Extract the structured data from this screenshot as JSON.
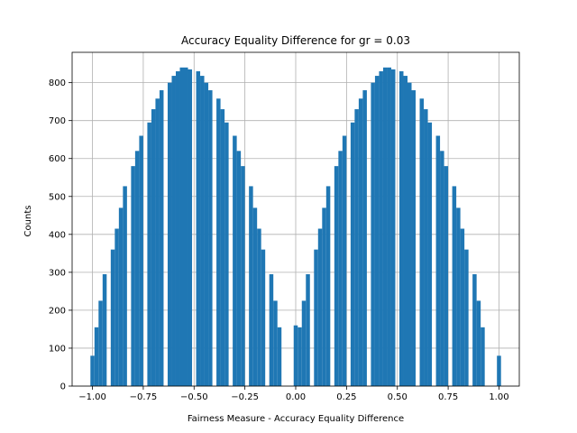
{
  "chart_data": {
    "type": "bar",
    "title": "Accuracy Equality Difference for gr = 0.03",
    "xlabel": "Fairness Measure - Accuracy Equality Difference",
    "ylabel": "Counts",
    "xlim": [
      -1.1,
      1.1
    ],
    "ylim": [
      0,
      880
    ],
    "xticks": [
      -1.0,
      -0.75,
      -0.5,
      -0.25,
      0.0,
      0.25,
      0.5,
      0.75,
      1.0
    ],
    "xtick_labels": [
      "−1.00",
      "−0.75",
      "−0.50",
      "−0.25",
      "0.00",
      "0.25",
      "0.50",
      "0.75",
      "1.00"
    ],
    "yticks": [
      0,
      100,
      200,
      300,
      400,
      500,
      600,
      700,
      800
    ],
    "ytick_labels": [
      "0",
      "100",
      "200",
      "300",
      "400",
      "500",
      "600",
      "700",
      "800"
    ],
    "grid": true,
    "bar_color": "#1f77b4",
    "bin_width": 0.02,
    "x": [
      -1.0,
      -0.98,
      -0.96,
      -0.94,
      -0.92,
      -0.9,
      -0.88,
      -0.86,
      -0.84,
      -0.82,
      -0.8,
      -0.78,
      -0.76,
      -0.74,
      -0.72,
      -0.7,
      -0.68,
      -0.66,
      -0.64,
      -0.62,
      -0.6,
      -0.58,
      -0.56,
      -0.54,
      -0.52,
      -0.5,
      -0.48,
      -0.46,
      -0.44,
      -0.42,
      -0.4,
      -0.38,
      -0.36,
      -0.34,
      -0.32,
      -0.3,
      -0.28,
      -0.26,
      -0.24,
      -0.22,
      -0.2,
      -0.18,
      -0.16,
      -0.14,
      -0.12,
      -0.1,
      -0.08,
      -0.06,
      -0.04,
      -0.02,
      0.0,
      0.02,
      0.04,
      0.06,
      0.08,
      0.1,
      0.12,
      0.14,
      0.16,
      0.18,
      0.2,
      0.22,
      0.24,
      0.26,
      0.28,
      0.3,
      0.32,
      0.34,
      0.36,
      0.38,
      0.4,
      0.42,
      0.44,
      0.46,
      0.48,
      0.5,
      0.52,
      0.54,
      0.56,
      0.58,
      0.6,
      0.62,
      0.64,
      0.66,
      0.68,
      0.7,
      0.72,
      0.74,
      0.76,
      0.78,
      0.8,
      0.82,
      0.84,
      0.86,
      0.88,
      0.9,
      0.92,
      0.94,
      0.96,
      0.98,
      1.0
    ],
    "values": [
      80,
      155,
      225,
      295,
      0,
      360,
      415,
      470,
      527,
      0,
      580,
      620,
      660,
      0,
      695,
      730,
      758,
      780,
      0,
      800,
      818,
      830,
      840,
      840,
      835,
      0,
      830,
      818,
      800,
      780,
      0,
      758,
      730,
      695,
      0,
      660,
      620,
      580,
      0,
      527,
      470,
      415,
      360,
      0,
      295,
      225,
      155,
      0,
      0,
      0,
      160,
      155,
      225,
      295,
      0,
      360,
      415,
      470,
      527,
      0,
      580,
      620,
      660,
      0,
      695,
      730,
      758,
      780,
      0,
      800,
      818,
      830,
      840,
      840,
      835,
      0,
      830,
      818,
      800,
      780,
      0,
      758,
      730,
      695,
      0,
      660,
      620,
      580,
      0,
      527,
      470,
      415,
      360,
      0,
      295,
      225,
      155,
      0,
      0,
      0,
      80
    ]
  }
}
